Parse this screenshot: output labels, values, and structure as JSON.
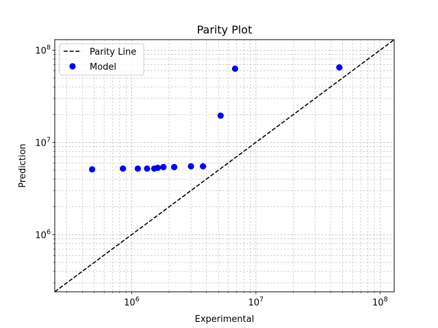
{
  "chart_data": {
    "type": "scatter",
    "title": "Parity Plot",
    "xlabel": "Experimental",
    "ylabel": "Prediction",
    "xscale": "log",
    "yscale": "log",
    "xlim": [
      240000,
      130000000
    ],
    "ylim": [
      240000,
      130000000
    ],
    "grid": true,
    "legend_location": "upper left",
    "x_ticks": [
      {
        "base": "10",
        "exp": "6",
        "value": 1000000
      },
      {
        "base": "10",
        "exp": "7",
        "value": 10000000
      },
      {
        "base": "10",
        "exp": "8",
        "value": 100000000
      }
    ],
    "y_ticks": [
      {
        "base": "10",
        "exp": "6",
        "value": 1000000
      },
      {
        "base": "10",
        "exp": "7",
        "value": 10000000
      },
      {
        "base": "10",
        "exp": "8",
        "value": 100000000
      }
    ],
    "series": [
      {
        "name": "Parity Line",
        "kind": "line",
        "style": "dashed",
        "color": "#000000",
        "x": [
          240000,
          130000000
        ],
        "y": [
          240000,
          130000000
        ]
      },
      {
        "name": "Model",
        "kind": "scatter",
        "color": "#0000ff",
        "x": [
          480000,
          850000,
          1120000,
          1330000,
          1520000,
          1620000,
          1800000,
          2200000,
          3000000,
          3750000,
          5200000,
          6800000,
          47000000
        ],
        "y": [
          5100000,
          5200000,
          5200000,
          5200000,
          5200000,
          5300000,
          5400000,
          5400000,
          5500000,
          5500000,
          19500000,
          63000000,
          65000000
        ]
      }
    ]
  }
}
